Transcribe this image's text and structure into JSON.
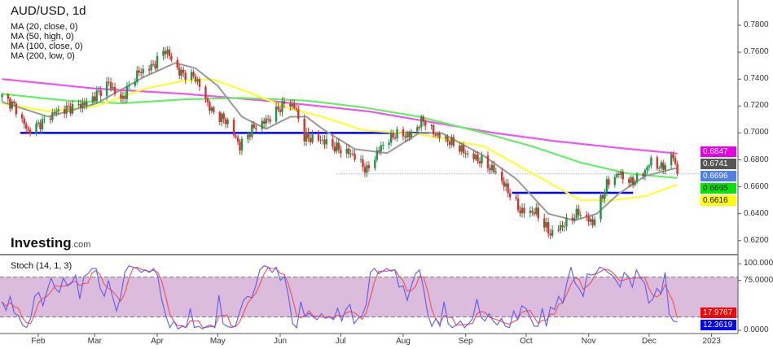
{
  "header": {
    "title": "AUD/USD, 1d",
    "ma_legend": [
      "MA (20, close, 0)",
      "MA (50, high, 0)",
      "MA (100, close, 0)",
      "MA (200, low, 0)"
    ],
    "logo_text": "Investing",
    "logo_suffix": ".com",
    "stoch_title": "Stoch (14, 1, 3)"
  },
  "colors": {
    "up": "#1e9448",
    "down": "#d9302c",
    "ma20": "#999999",
    "ma50": "#ffff33",
    "ma100": "#66ee66",
    "ma200": "#ee55ee",
    "support": "#0000ff",
    "stoch_k": "#5a5aff",
    "stoch_d": "#ff4d4d",
    "stoch_band": "#dcbcdc"
  },
  "chart_data": [
    {
      "type": "candlestick",
      "title": "AUD/USD, 1d",
      "ylim": [
        0.612,
        0.788
      ],
      "y_ticks": [
        "0.7800",
        "0.7600",
        "0.7400",
        "0.7200",
        "0.7000",
        "0.6800",
        "0.6600",
        "0.6400",
        "0.6200"
      ],
      "x_ticks": [
        {
          "label": "Feb",
          "date": "2022-02-01"
        },
        {
          "label": "Mar",
          "date": "2022-03-01"
        },
        {
          "label": "Apr",
          "date": "2022-04-01"
        },
        {
          "label": "May",
          "date": "2022-05-01"
        },
        {
          "label": "Jun",
          "date": "2022-06-01"
        },
        {
          "label": "Jul",
          "date": "2022-07-01"
        },
        {
          "label": "Aug",
          "date": "2022-08-01"
        },
        {
          "label": "Sep",
          "date": "2022-09-01"
        },
        {
          "label": "Oct",
          "date": "2022-10-01"
        },
        {
          "label": "Nov",
          "date": "2022-11-01"
        },
        {
          "label": "Dec",
          "date": "2022-12-01"
        },
        {
          "label": "2023",
          "date": "2023-01-01"
        }
      ],
      "close_path": [
        [
          "2022-01-14",
          0.727
        ],
        [
          "2022-01-20",
          0.72
        ],
        [
          "2022-01-27",
          0.701
        ],
        [
          "2022-02-03",
          0.708
        ],
        [
          "2022-02-10",
          0.716
        ],
        [
          "2022-02-18",
          0.719
        ],
        [
          "2022-02-25",
          0.722
        ],
        [
          "2022-03-03",
          0.73
        ],
        [
          "2022-03-08",
          0.737
        ],
        [
          "2022-03-14",
          0.724
        ],
        [
          "2022-03-22",
          0.744
        ],
        [
          "2022-03-30",
          0.75
        ],
        [
          "2022-04-05",
          0.762
        ],
        [
          "2022-04-12",
          0.745
        ],
        [
          "2022-04-20",
          0.741
        ],
        [
          "2022-04-28",
          0.716
        ],
        [
          "2022-05-06",
          0.708
        ],
        [
          "2022-05-12",
          0.69
        ],
        [
          "2022-05-18",
          0.703
        ],
        [
          "2022-05-26",
          0.71
        ],
        [
          "2022-06-03",
          0.722
        ],
        [
          "2022-06-08",
          0.72
        ],
        [
          "2022-06-13",
          0.697
        ],
        [
          "2022-06-21",
          0.695
        ],
        [
          "2022-06-30",
          0.688
        ],
        [
          "2022-07-07",
          0.684
        ],
        [
          "2022-07-14",
          0.672
        ],
        [
          "2022-07-21",
          0.69
        ],
        [
          "2022-07-28",
          0.699
        ],
        [
          "2022-08-04",
          0.698
        ],
        [
          "2022-08-11",
          0.71
        ],
        [
          "2022-08-16",
          0.7
        ],
        [
          "2022-08-26",
          0.692
        ],
        [
          "2022-09-02",
          0.684
        ],
        [
          "2022-09-09",
          0.679
        ],
        [
          "2022-09-16",
          0.671
        ],
        [
          "2022-09-22",
          0.657
        ],
        [
          "2022-09-28",
          0.642
        ],
        [
          "2022-10-06",
          0.641
        ],
        [
          "2022-10-13",
          0.625
        ],
        [
          "2022-10-20",
          0.632
        ],
        [
          "2022-10-27",
          0.641
        ],
        [
          "2022-11-03",
          0.633
        ],
        [
          "2022-11-10",
          0.662
        ],
        [
          "2022-11-16",
          0.67
        ],
        [
          "2022-11-22",
          0.663
        ],
        [
          "2022-11-28",
          0.67
        ],
        [
          "2022-12-02",
          0.679
        ],
        [
          "2022-12-07",
          0.674
        ],
        [
          "2022-12-13",
          0.683
        ],
        [
          "2022-12-15",
          0.6696
        ]
      ],
      "moving_averages": [
        {
          "name": "MA (20, close, 0)",
          "color_key": "ma20",
          "last": "0.6741",
          "points": [
            [
              "2022-01-14",
              0.723
            ],
            [
              "2022-02-06",
              0.712
            ],
            [
              "2022-03-02",
              0.722
            ],
            [
              "2022-03-26",
              0.742
            ],
            [
              "2022-04-10",
              0.752
            ],
            [
              "2022-04-20",
              0.748
            ],
            [
              "2022-05-01",
              0.735
            ],
            [
              "2022-05-13",
              0.712
            ],
            [
              "2022-05-25",
              0.703
            ],
            [
              "2022-06-06",
              0.712
            ],
            [
              "2022-06-14",
              0.712
            ],
            [
              "2022-06-22",
              0.703
            ],
            [
              "2022-07-08",
              0.688
            ],
            [
              "2022-07-24",
              0.685
            ],
            [
              "2022-08-09",
              0.7
            ],
            [
              "2022-08-20",
              0.7
            ],
            [
              "2022-09-10",
              0.683
            ],
            [
              "2022-09-26",
              0.666
            ],
            [
              "2022-10-12",
              0.64
            ],
            [
              "2022-10-25",
              0.635
            ],
            [
              "2022-11-05",
              0.64
            ],
            [
              "2022-11-16",
              0.655
            ],
            [
              "2022-11-29",
              0.668
            ],
            [
              "2022-12-15",
              0.6741
            ]
          ]
        },
        {
          "name": "MA (50, high, 0)",
          "color_key": "ma50",
          "last": "0.6616",
          "points": [
            [
              "2022-01-14",
              0.722
            ],
            [
              "2022-02-06",
              0.716
            ],
            [
              "2022-03-02",
              0.72
            ],
            [
              "2022-03-26",
              0.733
            ],
            [
              "2022-04-15",
              0.739
            ],
            [
              "2022-04-28",
              0.74
            ],
            [
              "2022-05-13",
              0.732
            ],
            [
              "2022-06-06",
              0.718
            ],
            [
              "2022-06-22",
              0.712
            ],
            [
              "2022-07-12",
              0.702
            ],
            [
              "2022-08-09",
              0.699
            ],
            [
              "2022-09-10",
              0.69
            ],
            [
              "2022-10-04",
              0.67
            ],
            [
              "2022-10-28",
              0.65
            ],
            [
              "2022-11-13",
              0.65
            ],
            [
              "2022-11-29",
              0.653
            ],
            [
              "2022-12-15",
              0.6616
            ]
          ]
        },
        {
          "name": "MA (100, close, 0)",
          "color_key": "ma100",
          "last": "0.6665",
          "points": [
            [
              "2022-01-14",
              0.729
            ],
            [
              "2022-02-15",
              0.724
            ],
            [
              "2022-03-14",
              0.722
            ],
            [
              "2022-04-15",
              0.725
            ],
            [
              "2022-05-13",
              0.726
            ],
            [
              "2022-06-14",
              0.724
            ],
            [
              "2022-07-12",
              0.719
            ],
            [
              "2022-08-09",
              0.712
            ],
            [
              "2022-09-10",
              0.7
            ],
            [
              "2022-10-04",
              0.69
            ],
            [
              "2022-10-28",
              0.678
            ],
            [
              "2022-11-20",
              0.67
            ],
            [
              "2022-12-15",
              0.6665
            ]
          ]
        },
        {
          "name": "MA (200, low, 0)",
          "color_key": "ma200",
          "last": "0.6847",
          "points": [
            [
              "2022-01-14",
              0.74
            ],
            [
              "2022-03-01",
              0.733
            ],
            [
              "2022-04-15",
              0.729
            ],
            [
              "2022-06-01",
              0.723
            ],
            [
              "2022-07-15",
              0.716
            ],
            [
              "2022-08-15",
              0.708
            ],
            [
              "2022-09-15",
              0.7
            ],
            [
              "2022-10-15",
              0.694
            ],
            [
              "2022-11-15",
              0.689
            ],
            [
              "2022-12-15",
              0.6847
            ]
          ]
        }
      ],
      "horizontal_lines": [
        {
          "price": 0.7,
          "from": "2022-01-23",
          "to": "2022-08-14",
          "style": "solid"
        },
        {
          "price": 0.6555,
          "from": "2022-09-24",
          "to": "2022-11-23",
          "style": "solid"
        },
        {
          "price": 0.6696,
          "from": "2022-06-29",
          "to": "2023-01-31",
          "style": "dotted"
        }
      ],
      "price_badges": [
        {
          "value": "0.6847",
          "bg": "#e600e6",
          "fg": "#ffffff"
        },
        {
          "value": "0.6741",
          "bg": "#555555",
          "fg": "#ffffff"
        },
        {
          "value": "0.6696",
          "bg": "#4f7fe8",
          "fg": "#ffffff"
        },
        {
          "value": "0.6665",
          "bg": "#00e600",
          "fg": "#000000"
        },
        {
          "value": "0.6616",
          "bg": "#ffff00",
          "fg": "#000000"
        }
      ]
    },
    {
      "type": "line",
      "title": "Stoch (14, 1, 3)",
      "ylim": [
        0,
        100
      ],
      "band": [
        20,
        80
      ],
      "y_ticks": [
        "100.0000",
        "75.0000",
        "0.0000"
      ],
      "start": "2022-01-14",
      "end": "2022-12-15",
      "k_values": [
        43,
        30,
        51,
        26,
        22,
        8,
        4,
        18,
        51,
        57,
        37,
        59,
        79,
        63,
        57,
        79,
        67,
        71,
        83,
        47,
        81,
        85,
        93,
        93,
        63,
        51,
        75,
        51,
        29,
        51,
        87,
        97,
        95,
        93,
        87,
        91,
        87,
        93,
        83,
        47,
        22,
        4,
        14,
        2,
        6,
        4,
        33,
        4,
        6,
        2,
        6,
        8,
        4,
        53,
        10,
        6,
        4,
        6,
        26,
        45,
        51,
        49,
        67,
        91,
        97,
        95,
        87,
        95,
        75,
        81,
        51,
        10,
        4,
        43,
        20,
        26,
        20,
        16,
        25,
        18,
        20,
        16,
        33,
        14,
        31,
        39,
        10,
        18,
        22,
        39,
        87,
        93,
        85,
        89,
        93,
        89,
        91,
        65,
        67,
        45,
        67,
        85,
        91,
        63,
        25,
        6,
        18,
        6,
        43,
        10,
        4,
        8,
        14,
        4,
        10,
        18,
        47,
        20,
        14,
        25,
        14,
        8,
        18,
        6,
        4,
        29,
        16,
        37,
        33,
        20,
        6,
        6,
        33,
        6,
        35,
        31,
        51,
        41,
        71,
        95,
        71,
        63,
        51,
        85,
        83,
        85,
        95,
        93,
        87,
        83,
        75,
        65,
        87,
        81,
        65,
        91,
        79,
        71,
        41,
        47,
        63,
        55,
        87,
        25,
        14,
        12.36
      ],
      "badges": [
        {
          "value": "17.9767",
          "bg": "#ff0000",
          "fg": "#ffffff"
        },
        {
          "value": "12.3619",
          "bg": "#0000ff",
          "fg": "#ffffff"
        }
      ]
    }
  ]
}
